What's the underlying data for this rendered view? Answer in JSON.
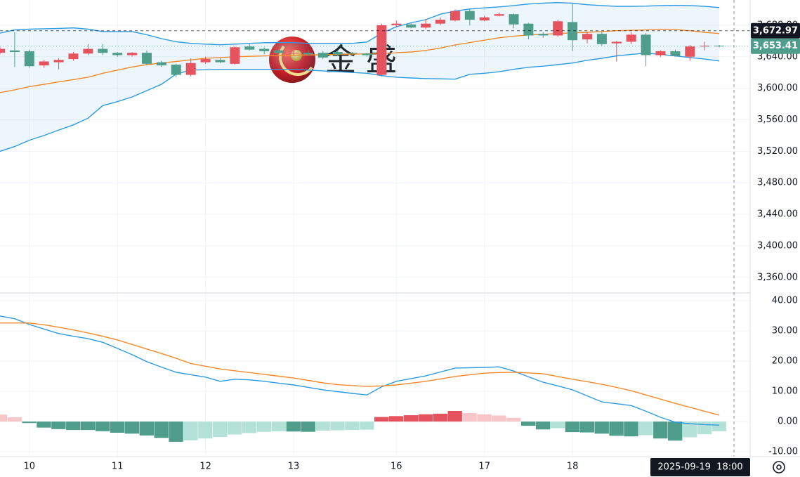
{
  "chart_data": [
    {
      "type": "candlestick",
      "watermark": "金 盛",
      "open": [
        3645,
        3648,
        3647,
        3629,
        3633,
        3637,
        3644,
        3650,
        3645,
        3642,
        3645,
        3633,
        3630,
        3617,
        3633,
        3636,
        3631,
        3653,
        3650,
        3648,
        3644,
        3645,
        3645,
        3646,
        3645,
        3644,
        3617,
        3680,
        3681,
        3677,
        3682,
        3686,
        3698,
        3686,
        3692,
        3694,
        3682,
        3669,
        3667,
        3684,
        3662,
        3669,
        3657,
        3659,
        3668,
        3642,
        3647,
        3640,
        3653,
        3654
      ],
      "high": [
        3652,
        3671,
        3649,
        3636,
        3638,
        3646,
        3656,
        3656,
        3646,
        3646,
        3648,
        3635,
        3631,
        3638,
        3640,
        3638,
        3653,
        3656,
        3652,
        3650,
        3647,
        3648,
        3647,
        3648,
        3646,
        3645,
        3682,
        3686,
        3683,
        3688,
        3690,
        3700,
        3700,
        3692,
        3696,
        3695,
        3683,
        3671,
        3687,
        3707,
        3672,
        3671,
        3660,
        3671,
        3670,
        3648,
        3649,
        3655,
        3659,
        3655
      ],
      "low": [
        3643,
        3627,
        3626,
        3626,
        3624,
        3635,
        3642,
        3642,
        3640,
        3640,
        3629,
        3627,
        3614,
        3615,
        3631,
        3632,
        3630,
        3648,
        3643,
        3643,
        3642,
        3641,
        3637,
        3641,
        3642,
        3640,
        3615,
        3678,
        3676,
        3675,
        3680,
        3685,
        3680,
        3685,
        3691,
        3676,
        3662,
        3664,
        3665,
        3647,
        3657,
        3654,
        3634,
        3656,
        3628,
        3640,
        3640,
        3635,
        3648,
        3652
      ],
      "close": [
        3650,
        3646,
        3628,
        3634,
        3636,
        3644,
        3650,
        3645,
        3642,
        3645,
        3631,
        3629,
        3617,
        3632,
        3637,
        3633,
        3652,
        3649,
        3647,
        3645,
        3645,
        3643,
        3639,
        3643,
        3644,
        3642,
        3680,
        3682,
        3677,
        3682,
        3687,
        3698,
        3687,
        3690,
        3694,
        3681,
        3667,
        3667,
        3685,
        3661,
        3669,
        3656,
        3659,
        3668,
        3642,
        3647,
        3641,
        3653,
        3654,
        3653.41
      ],
      "colors": {
        "up": "#e5535e",
        "down": "#4e9e8b"
      },
      "overlays": [
        {
          "color": "#2e9be0",
          "values": [
            3670,
            3674,
            3675,
            3675.5,
            3676,
            3676.6,
            3675,
            3672,
            3672,
            3672,
            3668,
            3663,
            3659,
            3657,
            3656,
            3655.2,
            3656,
            3657,
            3657.8,
            3658,
            3657.8,
            3657,
            3657,
            3657,
            3657,
            3658.7,
            3670,
            3678,
            3683,
            3687,
            3694,
            3698,
            3700.6,
            3702,
            3703.3,
            3705,
            3706.9,
            3708,
            3708.7,
            3708,
            3706,
            3705,
            3704,
            3704,
            3704.2,
            3705,
            3705.1,
            3705,
            3704,
            3702.4
          ]
        },
        {
          "color": "#f48a2b",
          "values": [
            3594.5,
            3598,
            3602,
            3605,
            3608,
            3611,
            3614,
            3619,
            3623,
            3627,
            3630,
            3632,
            3634,
            3636,
            3638,
            3639,
            3640,
            3640.5,
            3641,
            3641.5,
            3642,
            3642.2,
            3642.5,
            3643,
            3643.3,
            3643.6,
            3644,
            3645,
            3646,
            3648,
            3651,
            3655,
            3658,
            3661,
            3664,
            3666,
            3667.6,
            3668.5,
            3669.5,
            3670.3,
            3671,
            3672,
            3673,
            3673.5,
            3674,
            3674.8,
            3674.5,
            3673,
            3671,
            3669.4
          ]
        },
        {
          "color": "#2e9be0",
          "values": [
            3520,
            3526,
            3534,
            3540,
            3547,
            3553.5,
            3562,
            3578,
            3583,
            3589,
            3597,
            3605,
            3618,
            3623,
            3623.5,
            3624,
            3624,
            3624,
            3624,
            3624,
            3624,
            3623,
            3622,
            3621,
            3620,
            3619,
            3616,
            3614,
            3613,
            3612.3,
            3612,
            3611.5,
            3617.7,
            3619,
            3621,
            3624,
            3626.6,
            3628,
            3630,
            3632,
            3635.5,
            3638,
            3641,
            3643,
            3644.5,
            3643,
            3641,
            3639,
            3637,
            3634.6
          ]
        }
      ],
      "band_fill": "rgba(46,155,224,0.09)",
      "ylim": [
        3342,
        3712
      ],
      "yticks": [
        {
          "value": 3360,
          "label": "3,360.00"
        },
        {
          "value": 3400,
          "label": "3,400.00"
        },
        {
          "value": 3440,
          "label": "3,440.00"
        },
        {
          "value": 3480,
          "label": "3,480.00"
        },
        {
          "value": 3520,
          "label": "3,520.00"
        },
        {
          "value": 3560,
          "label": "3,560.00"
        },
        {
          "value": 3600,
          "label": "3,600.00"
        },
        {
          "value": 3640,
          "label": "3,640.00"
        },
        {
          "value": 3680,
          "label": "3,680.00"
        }
      ],
      "grid": true,
      "price_lines": [
        {
          "value": 3672.97,
          "label": "3,672.97",
          "color": "#131722",
          "style": "dashed"
        },
        {
          "value": 3653.41,
          "label": "3,653.41",
          "color": "#4e9e8b",
          "style": "dotted"
        }
      ]
    },
    {
      "type": "macd",
      "categories": [
        null,
        null,
        "10",
        null,
        null,
        null,
        null,
        null,
        "11",
        null,
        null,
        null,
        null,
        null,
        "12",
        null,
        null,
        null,
        null,
        null,
        "13",
        null,
        null,
        null,
        null,
        null,
        null,
        "16",
        null,
        null,
        null,
        null,
        null,
        "17",
        null,
        null,
        null,
        null,
        null,
        "18",
        null,
        null,
        null,
        null,
        null,
        null,
        null,
        null,
        null,
        null
      ],
      "series": [
        {
          "color": "#2e9be0",
          "values": [
            34.9,
            34,
            32.1,
            30.6,
            29.1,
            28.2,
            27.4,
            26.2,
            24.2,
            22.1,
            19.8,
            18,
            16.3,
            15.5,
            14.7,
            13.3,
            14,
            13.8,
            13.3,
            12.7,
            12.1,
            11.3,
            10.5,
            9.9,
            9.3,
            8.8,
            11.5,
            13.3,
            14.2,
            15.1,
            16.4,
            17.7,
            17.8,
            17.9,
            18.1,
            16.7,
            14.8,
            13,
            11.8,
            10.5,
            8.5,
            6.5,
            5.9,
            5.3,
            3.4,
            1.4,
            -0.2,
            -0.7,
            -1,
            -1.2
          ]
        },
        {
          "color": "#f48a2b",
          "values": [
            32.6,
            32.6,
            32.6,
            32,
            31.2,
            30.3,
            29.3,
            28.2,
            27,
            25.5,
            24,
            22.5,
            20.9,
            19.2,
            18.3,
            17.4,
            16.8,
            16.2,
            15.6,
            15,
            14.4,
            13.6,
            12.8,
            12.2,
            11.9,
            11.6,
            11.8,
            12.1,
            12.7,
            13.3,
            14.1,
            14.9,
            15.5,
            16,
            16.2,
            16.3,
            16.1,
            15.8,
            14.9,
            14,
            13.2,
            12.3,
            11.3,
            10.2,
            8.8,
            7.4,
            6,
            4.7,
            3.4,
            2.1
          ]
        }
      ],
      "histogram": {
        "values": [
          2.3,
          1.4,
          -0.5,
          -2,
          -2.5,
          -2.8,
          -2.8,
          -3.2,
          -3.7,
          -4,
          -4.6,
          -5.4,
          -6.7,
          -6.2,
          -5.6,
          -5.1,
          -4.3,
          -3.8,
          -3.4,
          -3.2,
          -3.3,
          -3.4,
          -3,
          -2.9,
          -2.8,
          -2.7,
          1.5,
          1.8,
          2.1,
          2.4,
          2.6,
          3.5,
          2.8,
          2.4,
          2,
          1.2,
          -1.4,
          -2.6,
          -2.2,
          -3.5,
          -3.6,
          -4,
          -4.7,
          -4.9,
          -4.5,
          -5.6,
          -6.3,
          -5.2,
          -4.2,
          -3.2
        ],
        "colors": {
          "pos_up": "#e5535e",
          "pos_down": "#f7c6c9",
          "neg_down": "#4e9e8b",
          "neg_up": "#b5e2d8"
        }
      },
      "ylim": [
        -11.6,
        42.3
      ],
      "yticks": [
        {
          "value": -10,
          "label": "-10.00"
        },
        {
          "value": 0,
          "label": "0.00"
        },
        {
          "value": 10,
          "label": "10.00"
        },
        {
          "value": 20,
          "label": "20.00"
        },
        {
          "value": 30,
          "label": "30.00"
        },
        {
          "value": 40,
          "label": "40.00"
        }
      ],
      "grid": true,
      "crosshair_label": "2025-09-19  18:00"
    }
  ]
}
